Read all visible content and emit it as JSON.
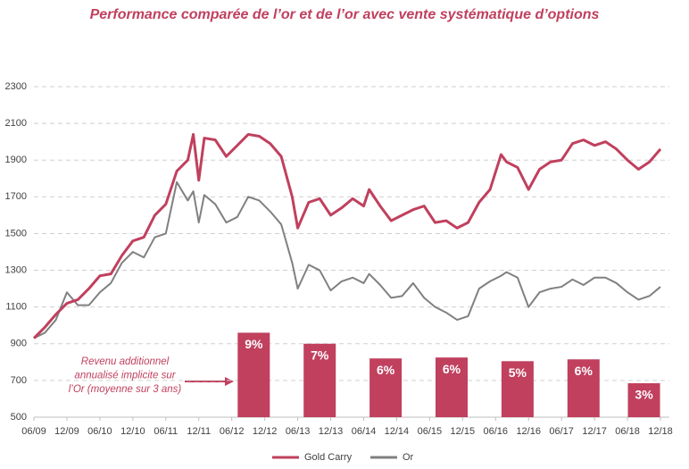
{
  "chart_data": {
    "type": "line",
    "title": "Performance comparée de l’or et de l’or avec vente systématique d’options",
    "x": [
      0,
      2,
      4,
      6,
      8,
      10,
      12,
      14,
      16,
      18,
      20,
      22,
      24,
      26,
      28,
      29,
      30,
      31,
      33,
      35,
      37,
      39,
      41,
      43,
      45,
      47,
      48,
      50,
      52,
      54,
      56,
      58,
      60,
      61,
      63,
      65,
      67,
      69,
      71,
      73,
      75,
      77,
      79,
      81,
      83,
      85,
      86,
      88,
      90,
      92,
      94,
      96,
      98,
      100,
      102,
      104,
      106,
      108,
      110,
      112,
      114
    ],
    "series": [
      {
        "name": "Gold Carry",
        "color": "#c0405e",
        "values": [
          930,
          990,
          1060,
          1120,
          1140,
          1200,
          1270,
          1280,
          1380,
          1460,
          1480,
          1600,
          1660,
          1840,
          1900,
          2040,
          1790,
          2020,
          2010,
          1920,
          1980,
          2040,
          2030,
          1990,
          1920,
          1700,
          1530,
          1670,
          1690,
          1600,
          1640,
          1690,
          1650,
          1740,
          1650,
          1570,
          1600,
          1630,
          1650,
          1560,
          1570,
          1530,
          1560,
          1670,
          1740,
          1930,
          1890,
          1860,
          1740,
          1850,
          1890,
          1900,
          1990,
          2010,
          1980,
          2000,
          1960,
          1900,
          1850,
          1890,
          1960
        ]
      },
      {
        "name": "Or",
        "color": "#808080",
        "values": [
          930,
          960,
          1030,
          1180,
          1110,
          1110,
          1180,
          1230,
          1340,
          1400,
          1370,
          1480,
          1500,
          1780,
          1680,
          1730,
          1560,
          1710,
          1660,
          1560,
          1590,
          1700,
          1680,
          1620,
          1550,
          1340,
          1200,
          1330,
          1300,
          1190,
          1240,
          1260,
          1230,
          1280,
          1220,
          1150,
          1160,
          1230,
          1150,
          1100,
          1070,
          1030,
          1050,
          1200,
          1240,
          1270,
          1290,
          1260,
          1100,
          1180,
          1200,
          1210,
          1250,
          1220,
          1260,
          1260,
          1230,
          1180,
          1140,
          1160,
          1210
        ]
      }
    ],
    "bars": {
      "color": "#c0405e",
      "x": [
        40,
        52,
        64,
        76,
        88,
        100,
        111
      ],
      "values": [
        960,
        900,
        820,
        825,
        805,
        815,
        685
      ],
      "labels": [
        "9%",
        "7%",
        "6%",
        "6%",
        "5%",
        "6%",
        "3%"
      ]
    },
    "annotation": [
      "Revenu additionnel",
      "annualisé implicite sur",
      "l’Or (moyenne sur 3 ans)"
    ],
    "xlim": [
      0,
      114
    ],
    "xticks": [
      {
        "value": 0,
        "label": "06/09"
      },
      {
        "value": 6,
        "label": "12/09"
      },
      {
        "value": 12,
        "label": "06/10"
      },
      {
        "value": 18,
        "label": "12/10"
      },
      {
        "value": 24,
        "label": "06/11"
      },
      {
        "value": 30,
        "label": "12/11"
      },
      {
        "value": 36,
        "label": "06/12"
      },
      {
        "value": 42,
        "label": "12/12"
      },
      {
        "value": 48,
        "label": "06/13"
      },
      {
        "value": 54,
        "label": "12/13"
      },
      {
        "value": 60,
        "label": "06/14"
      },
      {
        "value": 66,
        "label": "12/14"
      },
      {
        "value": 72,
        "label": "06/15"
      },
      {
        "value": 78,
        "label": "12/15"
      },
      {
        "value": 84,
        "label": "06/16"
      },
      {
        "value": 90,
        "label": "12/16"
      },
      {
        "value": 96,
        "label": "06/17"
      },
      {
        "value": 102,
        "label": "12/17"
      },
      {
        "value": 108,
        "label": "06/18"
      },
      {
        "value": 114,
        "label": "12/18"
      }
    ],
    "ylim": [
      500,
      2300
    ],
    "yticks": [
      500,
      700,
      900,
      1100,
      1300,
      1500,
      1700,
      1900,
      2100,
      2300
    ],
    "grid": true
  }
}
